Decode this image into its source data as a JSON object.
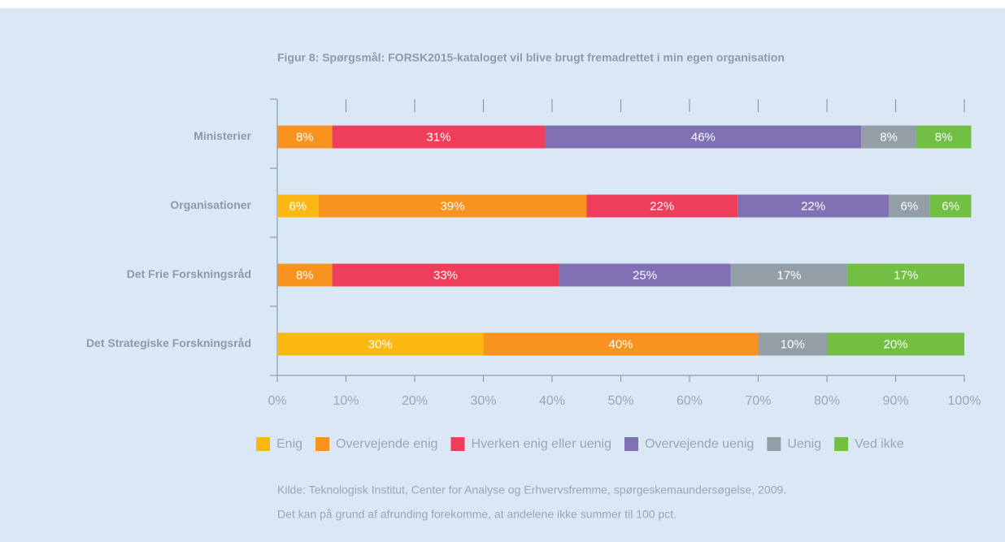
{
  "chart_data": {
    "type": "stacked-bar-horizontal",
    "title": "Figur 8: Spørgsmål: FORSK2015-kataloget vil blive brugt fremadrettet i min egen organisation",
    "categories": [
      "Ministerier",
      "Organisationer",
      "Det Frie Forskningsråd",
      "Det Strategiske Forskningsråd"
    ],
    "series": [
      {
        "name": "Enig",
        "color": "#fbb813",
        "values": [
          null,
          6,
          null,
          30
        ],
        "value_labels": [
          null,
          "6%",
          null,
          "30%"
        ]
      },
      {
        "name": "Overvejende enig",
        "color": "#f7931e",
        "values": [
          8,
          39,
          8,
          40
        ],
        "value_labels": [
          "8%",
          "39%",
          "8%",
          "40%"
        ]
      },
      {
        "name": "Hverken enig eller uenig",
        "color": "#ef3e5c",
        "values": [
          31,
          22,
          33,
          null
        ],
        "value_labels": [
          "31%",
          "22%",
          "33%",
          null
        ]
      },
      {
        "name": "Overvejende uenig",
        "color": "#8070b4",
        "values": [
          46,
          22,
          25,
          null
        ],
        "value_labels": [
          "46%",
          "22%",
          "25%",
          null
        ]
      },
      {
        "name": "Uenig",
        "color": "#939ea6",
        "values": [
          8,
          6,
          17,
          10
        ],
        "value_labels": [
          "8%",
          "6%",
          "17%",
          "10%"
        ]
      },
      {
        "name": "Ved ikke",
        "color": "#72bf44",
        "values": [
          8,
          6,
          17,
          20
        ],
        "value_labels": [
          "8%",
          "6%",
          "17%",
          "20%"
        ]
      }
    ],
    "xlim": [
      0,
      100
    ],
    "xticks": [
      {
        "value": 0,
        "label": "0%"
      },
      {
        "value": 10,
        "label": "10%"
      },
      {
        "value": 20,
        "label": "20%"
      },
      {
        "value": 30,
        "label": "30%"
      },
      {
        "value": 40,
        "label": "40%"
      },
      {
        "value": 50,
        "label": "50%"
      },
      {
        "value": 60,
        "label": "60%"
      },
      {
        "value": 70,
        "label": "70%"
      },
      {
        "value": 80,
        "label": "80%"
      },
      {
        "value": 90,
        "label": "90%"
      },
      {
        "value": 100,
        "label": "100%"
      }
    ],
    "legend": "bottom",
    "notes": [
      "Kilde: Teknologisk Institut, Center for Analyse og Erhvervsfremme, spørgeskemaundersøgelse, 2009.",
      "Det kan på grund af afrunding forekomme, at andelene ikke summer til 100 pct."
    ]
  }
}
